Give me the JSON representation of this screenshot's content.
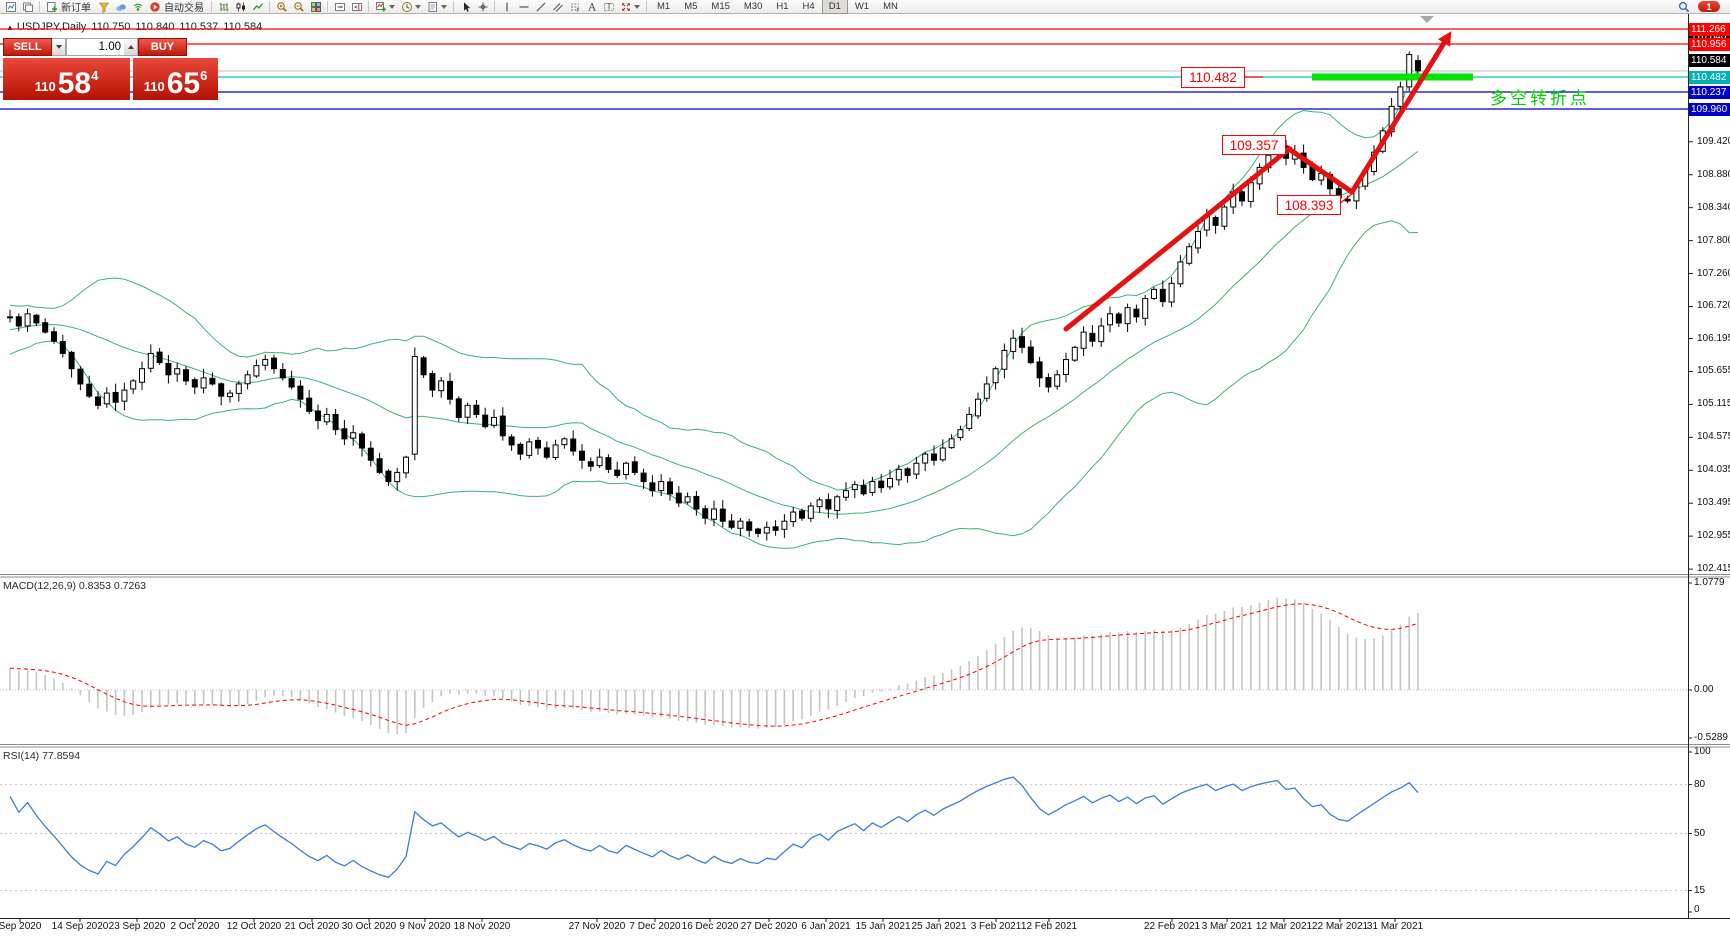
{
  "toolbar": {
    "new_order_label": "新订单",
    "auto_trading_label": "自动交易",
    "timeframes": [
      "M1",
      "M5",
      "M15",
      "M30",
      "H1",
      "H4",
      "D1",
      "W1",
      "MN"
    ],
    "active_timeframe": "D1",
    "notification_count": "1",
    "items": [
      {
        "t": "icon",
        "n": "new-chart-icon"
      },
      {
        "t": "icon",
        "n": "profiles-icon"
      },
      {
        "t": "sep"
      },
      {
        "t": "icon",
        "n": "new-order-icon"
      },
      {
        "t": "label",
        "n": "new-order-label",
        "key": "new_order_label"
      },
      {
        "t": "icon",
        "n": "funnel-icon"
      },
      {
        "t": "icon",
        "n": "community-icon"
      },
      {
        "t": "icon",
        "n": "signals-icon"
      },
      {
        "t": "icon",
        "n": "autotrade-icon"
      },
      {
        "t": "label",
        "n": "auto-trading-label",
        "key": "auto_trading_label"
      },
      {
        "t": "sep"
      },
      {
        "t": "icon",
        "n": "ohlc-bars-icon"
      },
      {
        "t": "icon",
        "n": "candlestick-icon"
      },
      {
        "t": "icon",
        "n": "line-chart-icon"
      },
      {
        "t": "sep"
      },
      {
        "t": "icon",
        "n": "zoom-in-icon"
      },
      {
        "t": "icon",
        "n": "zoom-out-icon"
      },
      {
        "t": "icon",
        "n": "tile-windows-icon"
      },
      {
        "t": "sep"
      },
      {
        "t": "icon",
        "n": "auto-scroll-icon"
      },
      {
        "t": "icon",
        "n": "chart-shift-icon"
      },
      {
        "t": "sep"
      },
      {
        "t": "icon",
        "n": "indicators-icon"
      },
      {
        "t": "caret"
      },
      {
        "t": "icon",
        "n": "periods-icon"
      },
      {
        "t": "caret"
      },
      {
        "t": "icon",
        "n": "templates-icon"
      },
      {
        "t": "caret"
      },
      {
        "t": "sep"
      },
      {
        "t": "icon",
        "n": "cursor-icon"
      },
      {
        "t": "icon",
        "n": "crosshair-icon"
      },
      {
        "t": "sep"
      },
      {
        "t": "icon",
        "n": "vertical-line-icon"
      },
      {
        "t": "icon",
        "n": "horizontal-line-icon"
      },
      {
        "t": "icon",
        "n": "trendline-icon"
      },
      {
        "t": "icon",
        "n": "equidistant-channel-icon"
      },
      {
        "t": "icon",
        "n": "fibonacci-icon"
      },
      {
        "t": "icon",
        "n": "text-icon"
      },
      {
        "t": "icon",
        "n": "text-label-icon"
      },
      {
        "t": "icon",
        "n": "arrows-icon"
      },
      {
        "t": "caret"
      },
      {
        "t": "sep"
      },
      {
        "t": "tfbar"
      },
      {
        "t": "spacer"
      },
      {
        "t": "icon",
        "n": "search-icon"
      },
      {
        "t": "badge",
        "n": "notification-badge",
        "key": "notification_count"
      }
    ]
  },
  "symbol_bar": {
    "marker": "▲",
    "symbol": "USDJPY,Daily",
    "open": "110.750",
    "high": "110.840",
    "low": "110.537",
    "close": "110.584"
  },
  "trade_panel": {
    "sell_label": "SELL",
    "buy_label": "BUY",
    "volume": "1.00",
    "sell_prefix": "110",
    "sell_main": "58",
    "sell_sup": "4",
    "buy_prefix": "110",
    "buy_main": "65",
    "buy_sup": "6"
  },
  "indicators": {
    "macd_label": "MACD(12,26,9) 0.8353 0.7263",
    "rsi_label": "RSI(14) 77.8594",
    "macd_axis": [
      "1.0779",
      "0.00",
      "-0.5289"
    ],
    "rsi_axis": [
      "100",
      "80",
      "50",
      "15",
      "0"
    ]
  },
  "annotations": {
    "resistance_label": "110.482",
    "swing_high_label": "109.357",
    "swing_low_label": "108.393",
    "turning_point_text": "多空转折点"
  },
  "chart_data": {
    "type": "candlestick",
    "symbol": "USDJPY",
    "period": "Daily",
    "ohlc_today": {
      "open": 110.75,
      "high": 110.84,
      "low": 110.537,
      "close": 110.584
    },
    "y_axis_ticks": [
      109.42,
      108.88,
      108.34,
      107.8,
      107.26,
      106.72,
      106.195,
      105.655,
      105.115,
      104.575,
      104.035,
      103.495,
      102.955,
      102.415
    ],
    "x_axis_labels": [
      "Sep 2020",
      "14 Sep 2020",
      "23 Sep 2020",
      "2 Oct 2020",
      "12 Oct 2020",
      "21 Oct 2020",
      "30 Oct 2020",
      "9 Nov 2020",
      "18 Nov 2020",
      "27 Nov 2020",
      "7 Dec 2020",
      "16 Dec 2020",
      "27 Dec 2020",
      "6 Jan 2021",
      "15 Jan 2021",
      "25 Jan 2021",
      "3 Feb 2021",
      "12 Feb 2021",
      "22 Feb 2021",
      "3 Mar 2021",
      "12 Mar 2021",
      "22 Mar 2021",
      "31 Mar 2021"
    ],
    "price_lines": [
      {
        "value": 111.266,
        "color": "#ff0000"
      },
      {
        "value": 110.956,
        "color": "#ff0000"
      },
      {
        "value": 110.584,
        "color": "#bdbdbd"
      },
      {
        "value": 110.482,
        "color": "#00c4c4"
      },
      {
        "value": 110.237,
        "color": "#0000cc"
      },
      {
        "value": 109.96,
        "color": "#0000cc"
      }
    ],
    "axis_badges": [
      {
        "label": "110.840",
        "bg": "#000000"
      },
      {
        "label": "110.584",
        "bg": "#000000"
      },
      {
        "label": "111.266",
        "bg": "#fe0000"
      },
      {
        "label": "110.956",
        "bg": "#fe0000"
      },
      {
        "label": "110.482",
        "bg": "#00b2b2"
      },
      {
        "label": "110.237",
        "bg": "#0000cc"
      },
      {
        "label": "109.960",
        "bg": "#0000cc"
      }
    ],
    "bollinger": {
      "period": 20,
      "deviation": 2
    },
    "macd": {
      "fast": 12,
      "slow": 26,
      "signal": 9,
      "main": 0.8353,
      "signal_value": 0.7263,
      "scale_max": 1.0779,
      "scale_min": -0.5289
    },
    "rsi": {
      "period": 14,
      "value": 77.8594,
      "levels": [
        80,
        50,
        15
      ]
    },
    "closes": [
      106.55,
      106.4,
      106.6,
      106.45,
      106.3,
      106.15,
      105.95,
      105.7,
      105.45,
      105.25,
      105.1,
      105.3,
      105.15,
      105.35,
      105.5,
      105.7,
      105.95,
      105.8,
      105.6,
      105.7,
      105.5,
      105.4,
      105.55,
      105.45,
      105.25,
      105.3,
      105.45,
      105.6,
      105.75,
      105.85,
      105.7,
      105.55,
      105.4,
      105.2,
      105.0,
      104.85,
      104.95,
      104.7,
      104.55,
      104.65,
      104.4,
      104.2,
      104.0,
      103.85,
      104.0,
      104.25,
      105.9,
      105.6,
      105.35,
      105.5,
      105.2,
      104.9,
      105.1,
      104.95,
      104.75,
      104.9,
      104.6,
      104.45,
      104.3,
      104.5,
      104.4,
      104.25,
      104.45,
      104.55,
      104.35,
      104.2,
      104.1,
      104.25,
      104.05,
      103.95,
      104.15,
      104.0,
      103.85,
      103.7,
      103.85,
      103.65,
      103.5,
      103.6,
      103.4,
      103.25,
      103.4,
      103.2,
      103.1,
      103.2,
      103.05,
      103.0,
      103.1,
      103.05,
      103.2,
      103.35,
      103.25,
      103.45,
      103.55,
      103.4,
      103.6,
      103.7,
      103.8,
      103.65,
      103.85,
      103.75,
      103.9,
      104.05,
      103.95,
      104.15,
      104.3,
      104.2,
      104.4,
      104.55,
      104.7,
      104.95,
      105.2,
      105.45,
      105.7,
      106.0,
      106.2,
      106.05,
      105.8,
      105.55,
      105.4,
      105.6,
      105.85,
      106.05,
      106.3,
      106.15,
      106.4,
      106.6,
      106.45,
      106.7,
      106.55,
      106.85,
      107.0,
      106.8,
      107.1,
      107.45,
      107.7,
      107.95,
      108.2,
      108.05,
      108.35,
      108.6,
      108.45,
      108.75,
      109.0,
      109.2,
      109.35,
      109.15,
      109.25,
      109.0,
      108.8,
      108.9,
      108.65,
      108.5,
      108.45,
      108.7,
      108.95,
      109.25,
      109.6,
      110.0,
      110.32,
      110.85,
      110.58
    ],
    "prehistory_closes": [
      105.55,
      105.65,
      105.6,
      105.75,
      105.85,
      105.8,
      105.95,
      106.05,
      106.0,
      106.15,
      106.1,
      106.2,
      106.3,
      106.25,
      106.35,
      106.3,
      106.4,
      106.5,
      106.45,
      106.55,
      106.5,
      106.6,
      106.55,
      106.5,
      106.55
    ],
    "candle_overrides": {
      "46": [
        104.3,
        106.05,
        104.2,
        105.9
      ],
      "159": [
        110.32,
        110.9,
        110.25,
        110.85
      ],
      "160": [
        110.75,
        110.84,
        110.537,
        110.584
      ]
    }
  }
}
